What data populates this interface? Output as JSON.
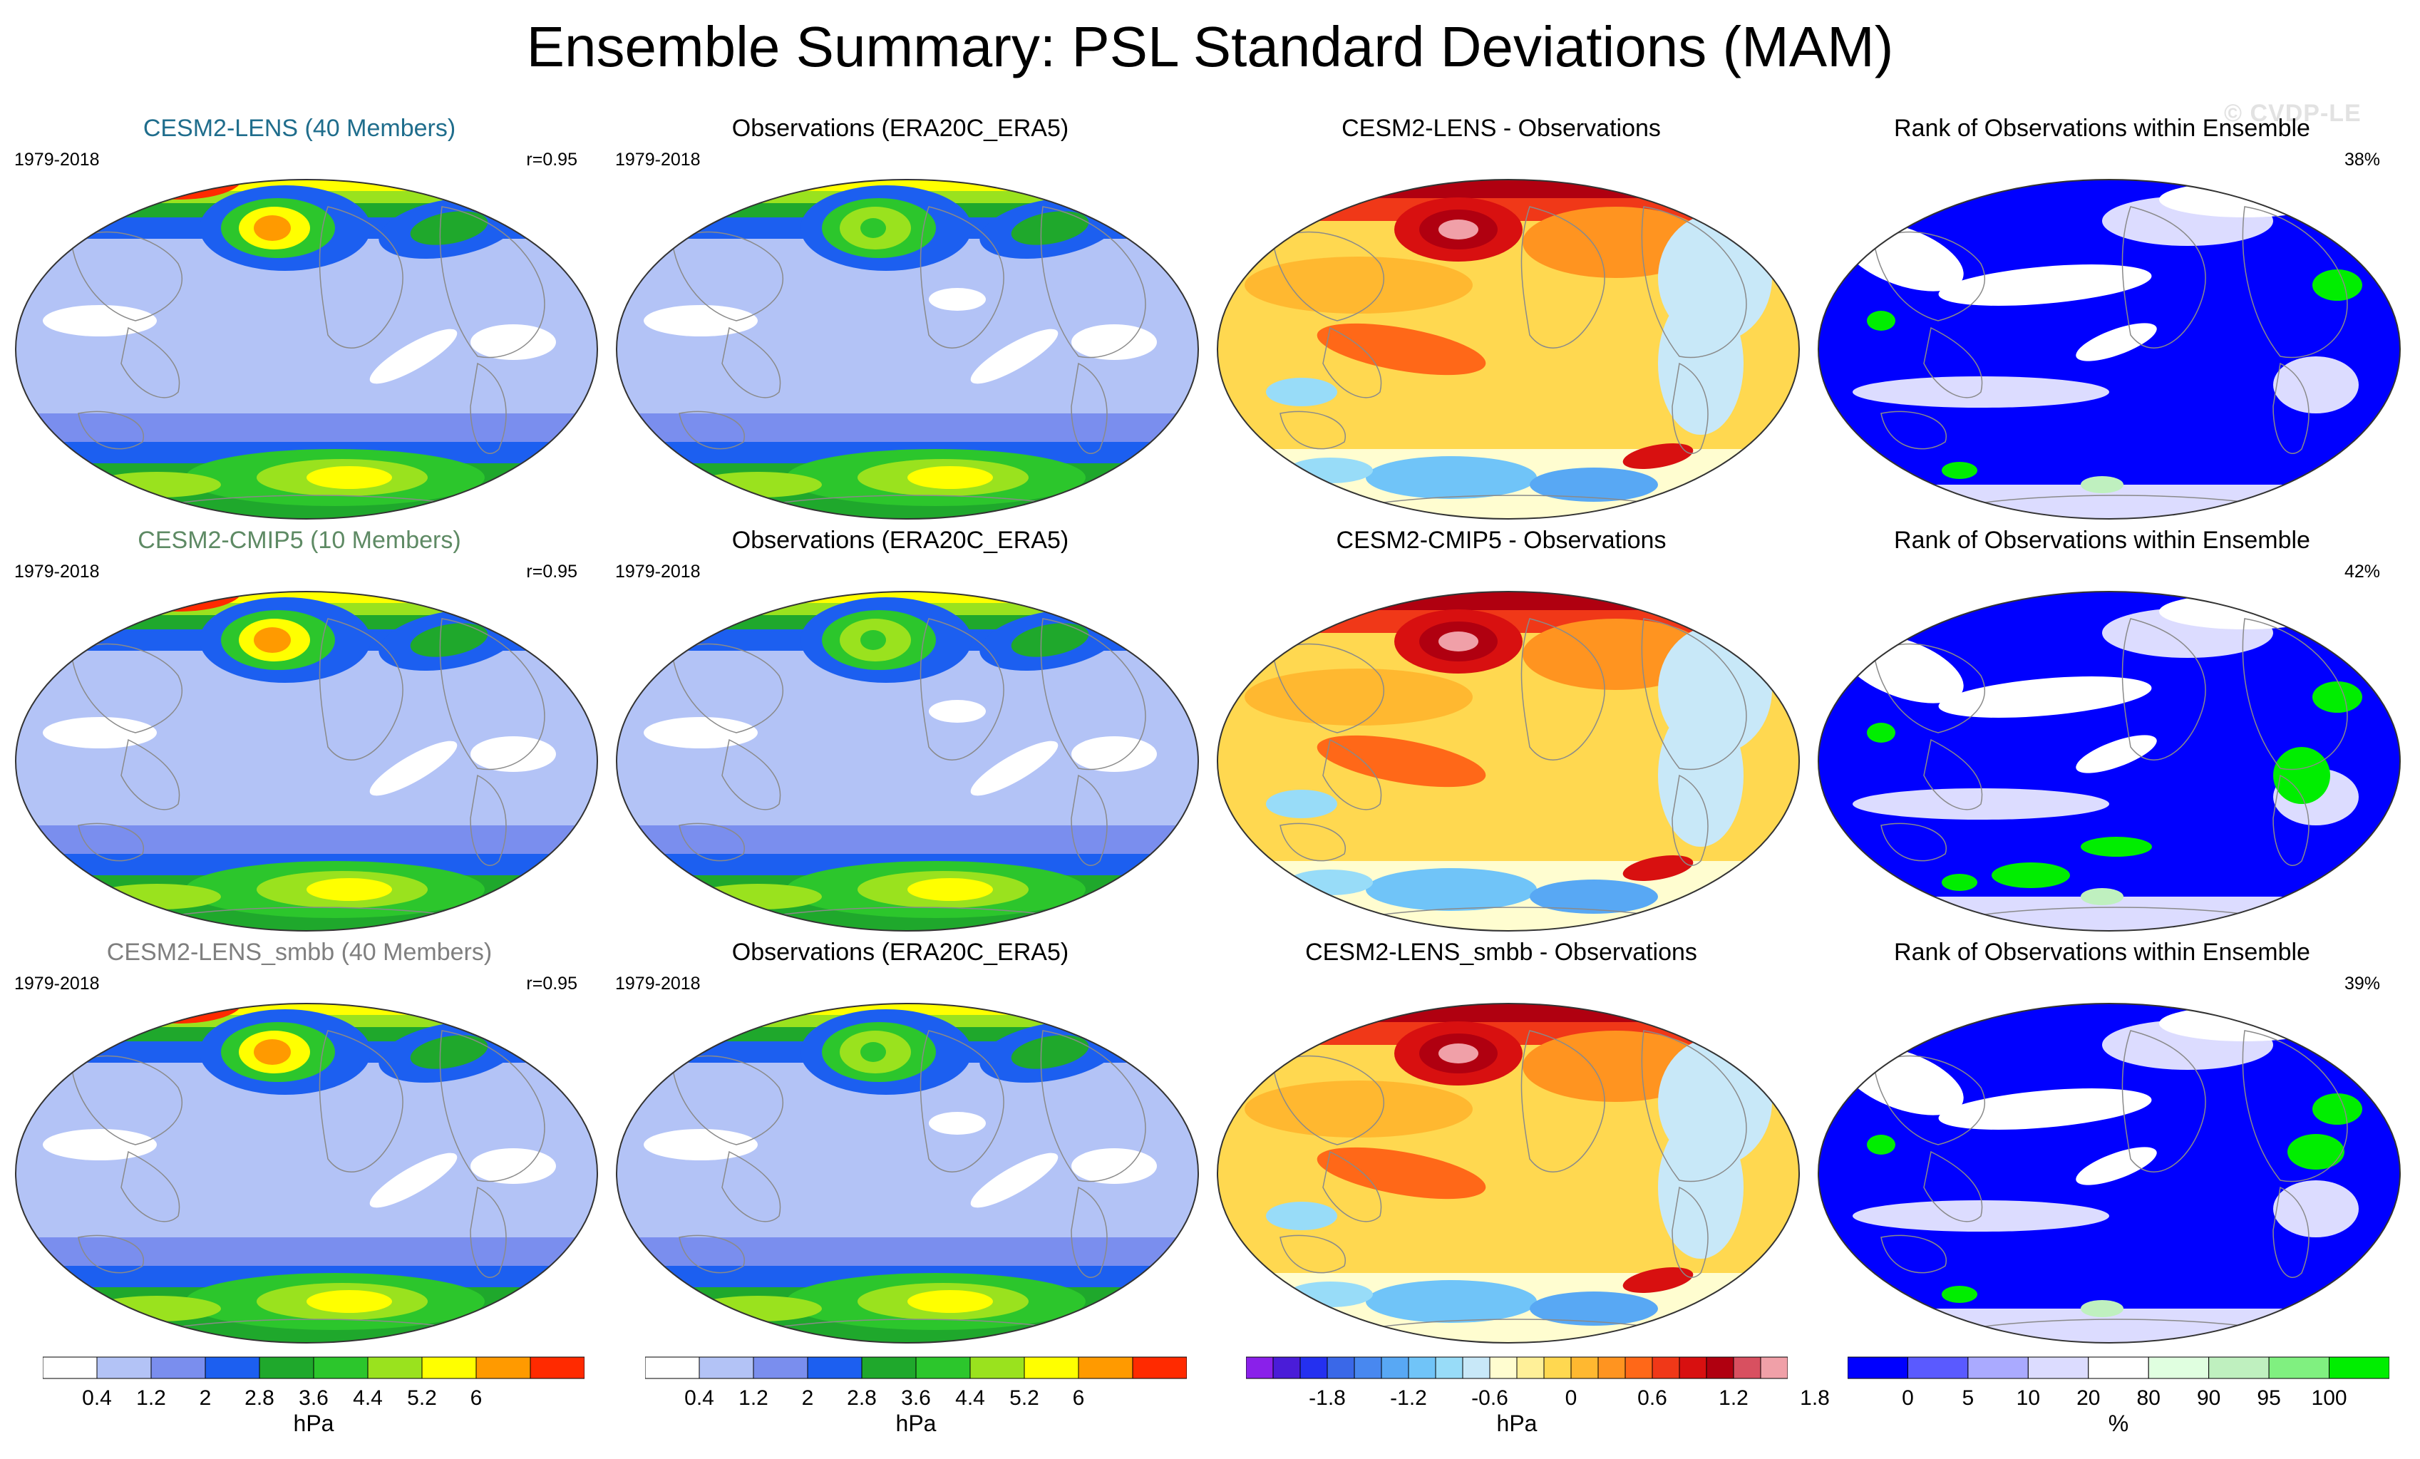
{
  "title": "Ensemble Summary: PSL Standard Deviations (MAM)",
  "watermark": "© CVDP-LE",
  "colors": {
    "title_lens": "#1f6d8c",
    "title_cmip5": "#5e8a64",
    "title_smbb": "#7f7f7f",
    "title_default": "#000000",
    "land_outline": "#8a8a8a",
    "map_border": "#333333"
  },
  "rows": [
    {
      "panels": [
        {
          "title": "CESM2-LENS (40 Members)",
          "title_color": "title_lens",
          "years": "1979-2018",
          "stat": "r=0.95",
          "kind": "std",
          "variant": 0
        },
        {
          "title": "Observations (ERA20C_ERA5)",
          "title_color": "title_default",
          "years": "1979-2018",
          "stat": "",
          "kind": "std_obs",
          "variant": 0
        },
        {
          "title": "CESM2-LENS - Observations",
          "title_color": "title_default",
          "years": "",
          "stat": "",
          "kind": "diff",
          "variant": 0
        },
        {
          "title": "Rank of Observations within Ensemble",
          "title_color": "title_default",
          "years": "",
          "stat": "38%",
          "kind": "rank",
          "variant": 0
        }
      ]
    },
    {
      "panels": [
        {
          "title": "CESM2-CMIP5 (10 Members)",
          "title_color": "title_cmip5",
          "years": "1979-2018",
          "stat": "r=0.95",
          "kind": "std",
          "variant": 1
        },
        {
          "title": "Observations (ERA20C_ERA5)",
          "title_color": "title_default",
          "years": "1979-2018",
          "stat": "",
          "kind": "std_obs",
          "variant": 1
        },
        {
          "title": "CESM2-CMIP5 - Observations",
          "title_color": "title_default",
          "years": "",
          "stat": "",
          "kind": "diff",
          "variant": 1
        },
        {
          "title": "Rank of Observations within Ensemble",
          "title_color": "title_default",
          "years": "",
          "stat": "42%",
          "kind": "rank",
          "variant": 1
        }
      ]
    },
    {
      "panels": [
        {
          "title": "CESM2-LENS_smbb (40 Members)",
          "title_color": "title_smbb",
          "years": "1979-2018",
          "stat": "r=0.95",
          "kind": "std",
          "variant": 2
        },
        {
          "title": "Observations (ERA20C_ERA5)",
          "title_color": "title_default",
          "years": "1979-2018",
          "stat": "",
          "kind": "std_obs",
          "variant": 2
        },
        {
          "title": "CESM2-LENS_smbb - Observations",
          "title_color": "title_default",
          "years": "",
          "stat": "",
          "kind": "diff",
          "variant": 2
        },
        {
          "title": "Rank of Observations within Ensemble",
          "title_color": "title_default",
          "years": "",
          "stat": "39%",
          "kind": "rank",
          "variant": 2
        }
      ]
    }
  ],
  "colorbars": [
    {
      "unit": "hPa",
      "colors": [
        "#ffffff",
        "#b3c3f6",
        "#7a8eee",
        "#1c5ff0",
        "#1fa82c",
        "#2cc62c",
        "#9ae21e",
        "#ffff00",
        "#ff9a00",
        "#ff2a00"
      ],
      "ticks": [
        "0.4",
        "1.2",
        "2",
        "2.8",
        "3.6",
        "4.4",
        "5.2",
        "6"
      ]
    },
    {
      "unit": "hPa",
      "colors": [
        "#ffffff",
        "#b3c3f6",
        "#7a8eee",
        "#1c5ff0",
        "#1fa82c",
        "#2cc62c",
        "#9ae21e",
        "#ffff00",
        "#ff9a00",
        "#ff2a00"
      ],
      "ticks": [
        "0.4",
        "1.2",
        "2",
        "2.8",
        "3.6",
        "4.4",
        "5.2",
        "6"
      ]
    },
    {
      "unit": "hPa",
      "colors": [
        "#8a20ea",
        "#4a1cd8",
        "#2430f0",
        "#3a68e8",
        "#4888f0",
        "#58a8f4",
        "#70c4f8",
        "#98dcf8",
        "#c8e8f8",
        "#fffdd0",
        "#fff098",
        "#ffd850",
        "#ffb830",
        "#ff9420",
        "#ff6818",
        "#f03818",
        "#d81010",
        "#b00010",
        "#d85060",
        "#f0a0a8"
      ],
      "ticks": [
        "-1.8",
        "-1.2",
        "-0.6",
        "0",
        "0.6",
        "1.2",
        "1.8"
      ]
    },
    {
      "unit": "%",
      "colors": [
        "#0000ff",
        "#5a5aff",
        "#aaaaff",
        "#dcdcff",
        "#ffffff",
        "#e0ffe0",
        "#bff0bf",
        "#80f080",
        "#00ee00"
      ],
      "ticks": [
        "0",
        "5",
        "10",
        "20",
        "80",
        "90",
        "95",
        "100"
      ]
    }
  ]
}
